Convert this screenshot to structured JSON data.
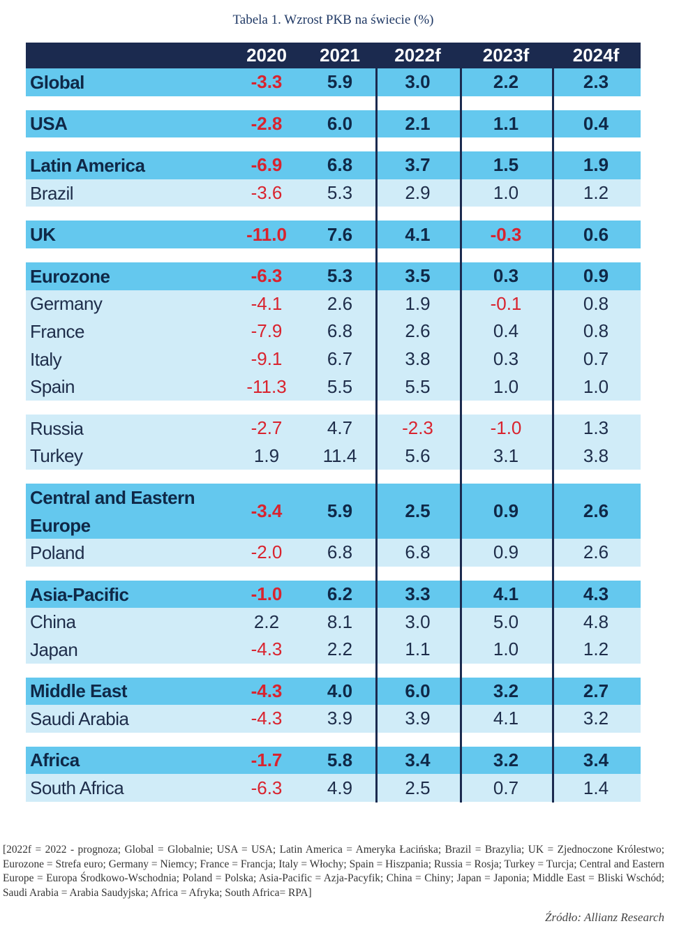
{
  "title": "Tabela 1. Wzrost PKB na świecie (%)",
  "header": {
    "columns": [
      "2020",
      "2021",
      "2022f",
      "2023f",
      "2024f"
    ]
  },
  "rows": [
    {
      "name": "Global",
      "values": [
        "-3.3",
        "5.9",
        "3.0",
        "2.2",
        "2.3"
      ]
    },
    {
      "name": "USA",
      "values": [
        "-2.8",
        "6.0",
        "2.1",
        "1.1",
        "0.4"
      ]
    },
    {
      "name": "Latin America",
      "values": [
        "-6.9",
        "6.8",
        "3.7",
        "1.5",
        "1.9"
      ]
    },
    {
      "name": "Brazil",
      "values": [
        "-3.6",
        "5.3",
        "2.9",
        "1.0",
        "1.2"
      ]
    },
    {
      "name": "UK",
      "values": [
        "-11.0",
        "7.6",
        "4.1",
        "-0.3",
        "0.6"
      ]
    },
    {
      "name": "Eurozone",
      "values": [
        "-6.3",
        "5.3",
        "3.5",
        "0.3",
        "0.9"
      ]
    },
    {
      "name": "Germany",
      "values": [
        "-4.1",
        "2.6",
        "1.9",
        "-0.1",
        "0.8"
      ]
    },
    {
      "name": "France",
      "values": [
        "-7.9",
        "6.8",
        "2.6",
        "0.4",
        "0.8"
      ]
    },
    {
      "name": "Italy",
      "values": [
        "-9.1",
        "6.7",
        "3.8",
        "0.3",
        "0.7"
      ]
    },
    {
      "name": "Spain",
      "values": [
        "-11.3",
        "5.5",
        "5.5",
        "1.0",
        "1.0"
      ]
    },
    {
      "name": "Russia",
      "values": [
        "-2.7",
        "4.7",
        "-2.3",
        "-1.0",
        "1.3"
      ]
    },
    {
      "name": "Turkey",
      "values": [
        "1.9",
        "11.4",
        "5.6",
        "3.1",
        "3.8"
      ]
    },
    {
      "name_line1": "Central and Eastern",
      "name_line2": "Europe",
      "values": [
        "-3.4",
        "5.9",
        "2.5",
        "0.9",
        "2.6"
      ]
    },
    {
      "name": "Poland",
      "values": [
        "-2.0",
        "6.8",
        "6.8",
        "0.9",
        "2.6"
      ]
    },
    {
      "name": "Asia-Pacific",
      "values": [
        "-1.0",
        "6.2",
        "3.3",
        "4.1",
        "4.3"
      ]
    },
    {
      "name": "China",
      "values": [
        "2.2",
        "8.1",
        "3.0",
        "5.0",
        "4.8"
      ]
    },
    {
      "name": "Japan",
      "values": [
        "-4.3",
        "2.2",
        "1.1",
        "1.0",
        "1.2"
      ]
    },
    {
      "name": "Middle East",
      "values": [
        "-4.3",
        "4.0",
        "6.0",
        "3.2",
        "2.7"
      ]
    },
    {
      "name": "Saudi Arabia",
      "values": [
        "-4.3",
        "3.9",
        "3.9",
        "4.1",
        "3.2"
      ]
    },
    {
      "name": "Africa",
      "values": [
        "-1.7",
        "5.8",
        "3.4",
        "3.2",
        "3.4"
      ]
    },
    {
      "name": "South Africa",
      "values": [
        "-6.3",
        "4.9",
        "2.5",
        "0.7",
        "1.4"
      ]
    }
  ],
  "footnote": "[2022f = 2022 - prognoza; Global = Globalnie; USA = USA; Latin America = Ameryka Łacińska; Brazil = Brazylia; UK = Zjednoczone Królestwo; Eurozone = Strefa euro; Germany = Niemcy; France = Francja; Italy = Włochy; Spain = Hiszpania; Russia = Rosja; Turkey = Turcja; Central and Eastern Europe = Europa Środkowo-Wschodnia; Poland = Polska; Asia-Pacific = Azja-Pacyfik; China = Chiny; Japan = Japonia; Middle East = Bliski Wschód; Saudi Arabia = Arabia Saudyjska; Africa = Afryka; South Africa= RPA]",
  "source": "Źródło: Allianz Research",
  "colors": {
    "header_bg": "#1b2a4f",
    "main_row_bg": "#64c8ee",
    "sub_row_bg": "#d0ecf8",
    "negative": "#d9232e"
  }
}
